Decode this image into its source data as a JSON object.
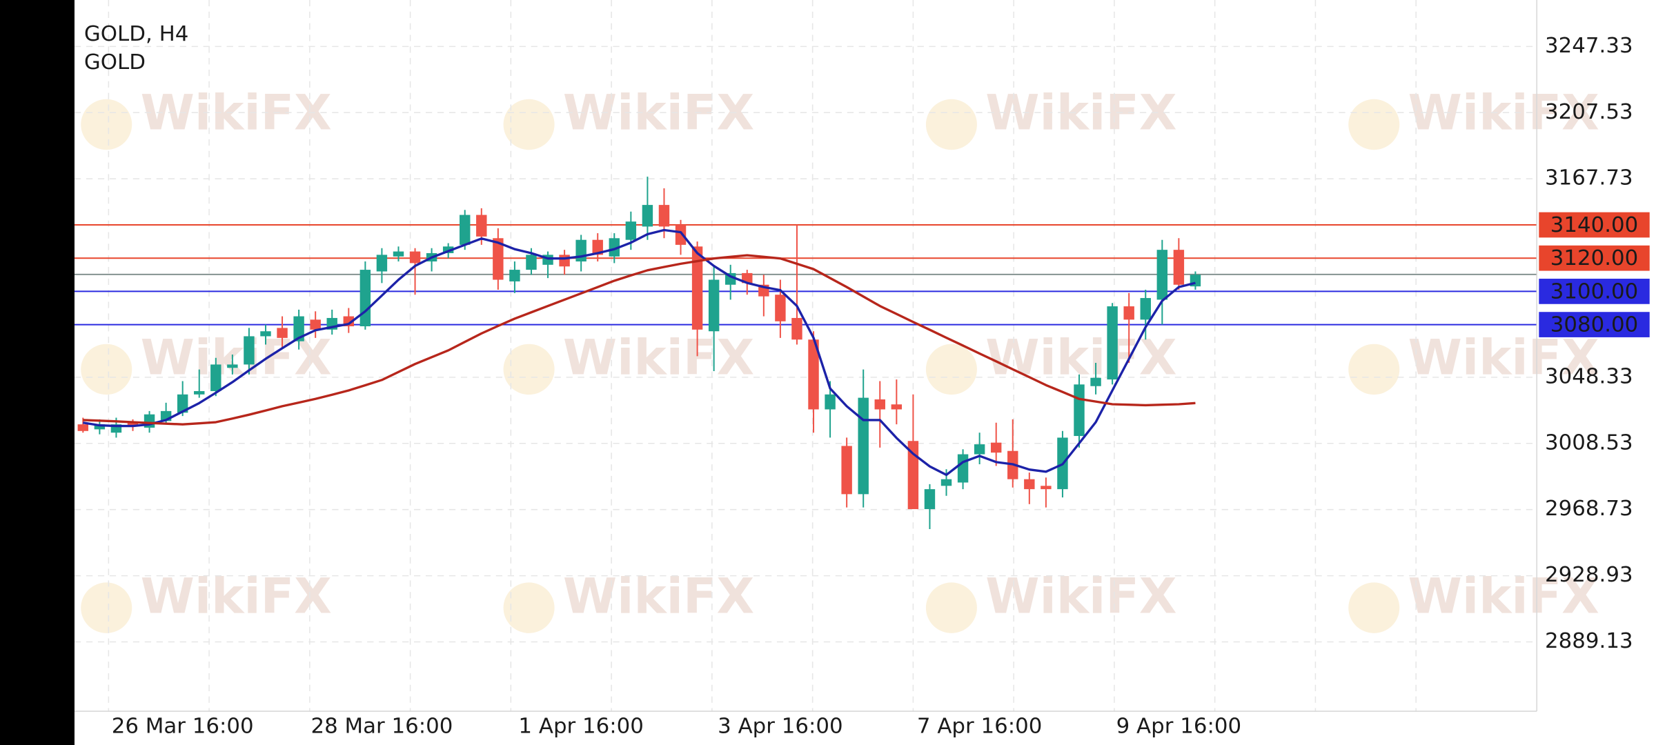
{
  "chart_data": {
    "type": "candlestick",
    "title": "GOLD, H4",
    "subtitle": "GOLD",
    "watermark": "WikiFX",
    "categories": [
      null,
      null,
      null,
      null,
      null,
      null,
      "26 Mar 16:00",
      null,
      null,
      null,
      null,
      null,
      null,
      null,
      null,
      null,
      null,
      null,
      "28 Mar 16:00",
      null,
      null,
      null,
      null,
      null,
      null,
      null,
      null,
      null,
      null,
      null,
      "1 Apr 16:00",
      null,
      null,
      null,
      null,
      null,
      null,
      null,
      null,
      null,
      null,
      null,
      "3 Apr 16:00",
      null,
      null,
      null,
      null,
      null,
      null,
      null,
      null,
      null,
      null,
      null,
      "7 Apr 16:00",
      null,
      null,
      null,
      null,
      null,
      null,
      null,
      null,
      null,
      null,
      null,
      "9 Apr 16:00",
      null
    ],
    "open": [
      3020,
      3017,
      3015,
      3021,
      3018,
      3022,
      3027,
      3038,
      3040,
      3054,
      3056,
      3073,
      3078,
      3070,
      3083,
      3077,
      3085,
      3079,
      3112,
      3121,
      3124,
      3118,
      3123,
      3128,
      3146,
      3132,
      3106,
      3113,
      3116,
      3122,
      3118,
      3131,
      3121,
      3131,
      3139,
      3152,
      3140,
      3127,
      3076,
      3104,
      3111,
      3104,
      3098,
      3084,
      3071,
      3029,
      3007,
      2978,
      3035,
      3032,
      3010,
      2969,
      2983,
      2985,
      3002,
      3009,
      3004,
      2987,
      2983,
      2981,
      3013,
      3043,
      3047,
      3091,
      3083,
      3095,
      3125,
      3103
    ],
    "high": [
      3024,
      3023,
      3024,
      3023,
      3028,
      3033,
      3046,
      3053,
      3060,
      3062,
      3078,
      3080,
      3085,
      3089,
      3088,
      3089,
      3090,
      3118,
      3126,
      3127,
      3126,
      3126,
      3129,
      3149,
      3150,
      3138,
      3118,
      3126,
      3124,
      3125,
      3134,
      3135,
      3135,
      3148,
      3169,
      3162,
      3143,
      3130,
      3115,
      3116,
      3113,
      3110,
      3107,
      3140,
      3076,
      3046,
      3012,
      3053,
      3046,
      3047,
      3038,
      2984,
      2993,
      3005,
      3015,
      3021,
      3023,
      2991,
      2988,
      3016,
      3050,
      3057,
      3093,
      3099,
      3101,
      3131,
      3132,
      3112
    ],
    "low": [
      3015,
      3014,
      3012,
      3016,
      3015,
      3020,
      3025,
      3036,
      3037,
      3050,
      3050,
      3068,
      3066,
      3065,
      3072,
      3074,
      3075,
      3077,
      3105,
      3118,
      3098,
      3112,
      3120,
      3125,
      3128,
      3101,
      3099,
      3110,
      3108,
      3110,
      3112,
      3118,
      3117,
      3125,
      3131,
      3132,
      3122,
      3061,
      3052,
      3095,
      3098,
      3085,
      3072,
      3068,
      3015,
      3012,
      2970,
      2970,
      3006,
      3020,
      2969,
      2957,
      2977,
      2981,
      2996,
      2995,
      2982,
      2972,
      2970,
      2976,
      3006,
      3038,
      3044,
      3057,
      3071,
      3080,
      3101,
      3101
    ],
    "close": [
      3016,
      3020,
      3020,
      3019,
      3026,
      3028,
      3038,
      3040,
      3056,
      3056,
      3073,
      3076,
      3072,
      3085,
      3077,
      3084,
      3079,
      3113,
      3122,
      3124,
      3117,
      3123,
      3127,
      3146,
      3133,
      3107,
      3113,
      3122,
      3122,
      3115,
      3131,
      3122,
      3132,
      3142,
      3152,
      3139,
      3128,
      3077,
      3107,
      3111,
      3105,
      3097,
      3082,
      3071,
      3029,
      3038,
      2978,
      3036,
      3029,
      3029,
      2969,
      2981,
      2987,
      3002,
      3008,
      3003,
      2987,
      2981,
      2981,
      3012,
      3044,
      3048,
      3091,
      3083,
      3096,
      3125,
      3104,
      3110
    ],
    "up_color": "#1fa38e",
    "down_color": "#ef5348",
    "series": [
      {
        "color": "#1c22a8",
        "values": [
          3021,
          3019.4,
          3019,
          3019,
          3020,
          3022.6,
          3027.7,
          3032.8,
          3039,
          3045.4,
          3052.5,
          3059.4,
          3065.8,
          3072,
          3076.6,
          3078.5,
          3080.4,
          3088,
          3097.5,
          3107,
          3115.3,
          3120.4,
          3124.2,
          3128,
          3131.8,
          3129.3,
          3125.4,
          3123,
          3119.8,
          3119.8,
          3121,
          3123,
          3125.4,
          3129.3,
          3134.4,
          3136.9,
          3135.6,
          3123,
          3115.3,
          3109,
          3105.1,
          3102.6,
          3100.7,
          3091.2,
          3072.1,
          3041.6,
          3030.9,
          3022.6,
          3022.6,
          3011.8,
          3002.3,
          2994.7,
          2989.6,
          2997.3,
          3001,
          2997.3,
          2996,
          2992.8,
          2991.5,
          2996,
          3008.6,
          3021.3,
          3040.4,
          3059.4,
          3078.5,
          3094.3,
          3102.6,
          3105.1
        ]
      },
      {
        "color": "#b7261b",
        "values": [
          3022.6,
          3022.2,
          3021.8,
          3021.3,
          3020.8,
          3020.4,
          3020,
          3020.6,
          3021.3,
          3023.5,
          3025.8,
          3028.3,
          3030.9,
          3033.1,
          3035.3,
          3037.8,
          3040.4,
          3043.5,
          3046.7,
          3051.5,
          3056.3,
          3060.4,
          3064.5,
          3069.6,
          3074.7,
          3079.2,
          3083.6,
          3087.4,
          3091.2,
          3095,
          3098.8,
          3102.6,
          3106.4,
          3109.6,
          3112.7,
          3114.7,
          3116.6,
          3118.2,
          3119.8,
          3120.8,
          3121.7,
          3120.8,
          3119.8,
          3116.6,
          3113.4,
          3108,
          3102.6,
          3096.9,
          3091.2,
          3086.4,
          3081.6,
          3076.9,
          3072.1,
          3067.4,
          3062.6,
          3057.9,
          3053.1,
          3048.4,
          3043.6,
          3039.5,
          3035.3,
          3033.7,
          3032.1,
          3031.8,
          3031.5,
          3031.8,
          3032.1,
          3032.8
        ]
      }
    ],
    "levels": [
      {
        "value": 3140,
        "label": "3140.00",
        "color": "#e8452c"
      },
      {
        "value": 3120,
        "label": "3120.00",
        "color": "#e8452c"
      },
      {
        "value": 3100,
        "label": "3100.00",
        "color": "#2a2ae0"
      },
      {
        "value": 3080,
        "label": "3080.00",
        "color": "#2a2ae0"
      }
    ],
    "price_line": 3110.2,
    "ylim": [
      2847.4,
      3275.3
    ],
    "yticks": [
      3247.33,
      3207.53,
      3167.73,
      3048.33,
      3008.53,
      2968.73,
      2928.93,
      2889.13
    ],
    "grid": true
  }
}
